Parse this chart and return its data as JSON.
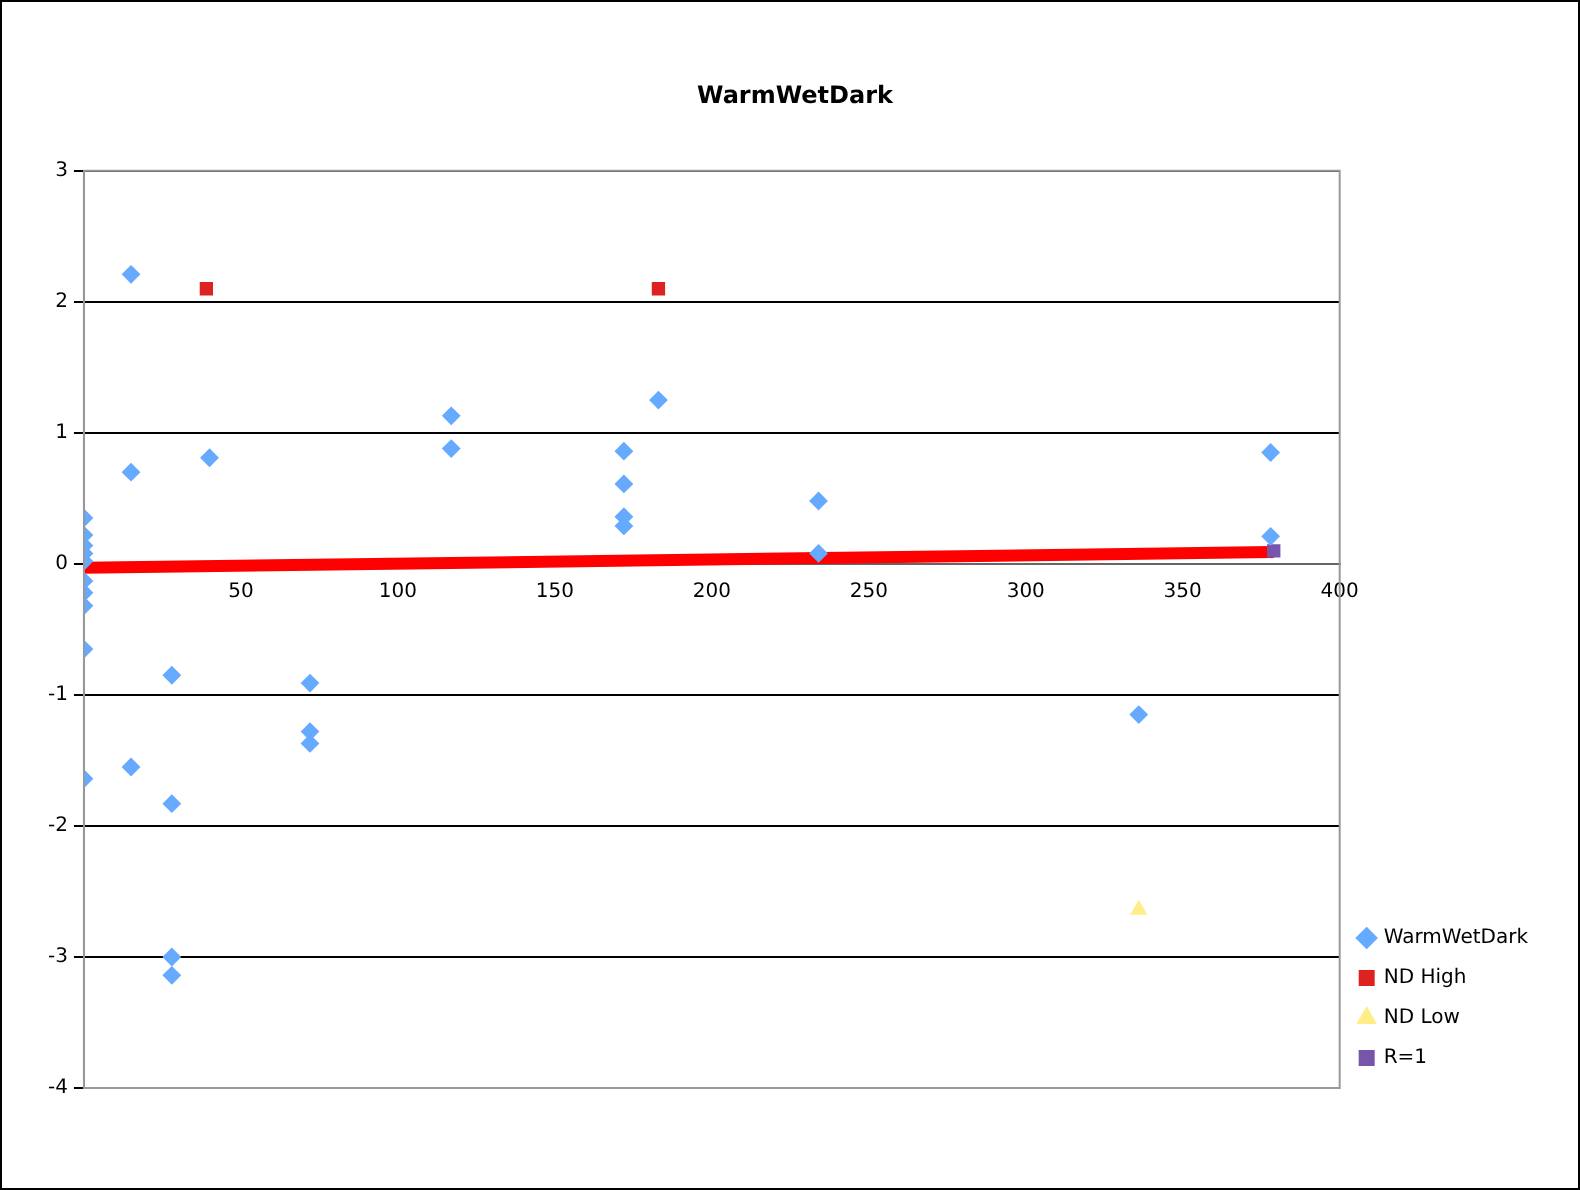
{
  "chart_data": {
    "type": "scatter",
    "title": "WarmWetDark",
    "xlim": [
      0,
      400
    ],
    "xticks": [
      50,
      100,
      150,
      200,
      250,
      300,
      350,
      400
    ],
    "ylim": [
      -4,
      3
    ],
    "yticks": [
      -4,
      -3,
      -2,
      -1,
      0,
      1,
      2,
      3
    ],
    "grid": "y",
    "legend": "right",
    "series": [
      {
        "name": "WarmWetDark",
        "color": "#66aaff",
        "marker": "diamond",
        "x": [
          15,
          15,
          40,
          117,
          117,
          0,
          0,
          0,
          0,
          0,
          0,
          0,
          0,
          0,
          0,
          28,
          15,
          28,
          28,
          28,
          72,
          72,
          72,
          183,
          172,
          172,
          172,
          172,
          234,
          234,
          378,
          378,
          336
        ],
        "values": [
          2.21,
          0.7,
          0.81,
          1.13,
          0.88,
          0.35,
          0.22,
          0.14,
          0.08,
          0.02,
          -0.13,
          -0.22,
          -0.32,
          -0.65,
          -1.64,
          -0.85,
          -1.55,
          -1.83,
          -3.0,
          -3.14,
          -0.91,
          -1.28,
          -1.37,
          1.25,
          0.86,
          0.61,
          0.36,
          0.29,
          0.48,
          0.08,
          0.85,
          0.21,
          -1.15
        ]
      },
      {
        "name": "ND High",
        "color": "#dd2222",
        "marker": "square",
        "x": [
          39,
          183
        ],
        "values": [
          2.1,
          2.1
        ]
      },
      {
        "name": "ND Low",
        "color": "#ffee88",
        "marker": "triangle",
        "x": [
          336
        ],
        "values": [
          -2.64
        ]
      },
      {
        "name": "R=1",
        "color": "#7755aa",
        "marker": "square",
        "x": [
          379
        ],
        "values": [
          0.1
        ]
      },
      {
        "type": "line",
        "color": "#ff0000",
        "marker": "none",
        "x": [
          0,
          379
        ],
        "values": [
          -0.03,
          0.09
        ]
      }
    ]
  }
}
